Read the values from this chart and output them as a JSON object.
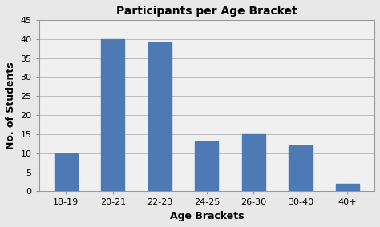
{
  "categories": [
    "18-19",
    "20-21",
    "22-23",
    "24-25",
    "26-30",
    "30-40",
    "40+"
  ],
  "values": [
    10,
    40,
    39,
    13,
    15,
    12,
    2
  ],
  "bar_color": "#4d7ab5",
  "title": "Participants per Age Bracket",
  "xlabel": "Age Brackets",
  "ylabel": "No. of Students",
  "ylim": [
    0,
    45
  ],
  "yticks": [
    0,
    5,
    10,
    15,
    20,
    25,
    30,
    35,
    40,
    45
  ],
  "title_fontsize": 10,
  "label_fontsize": 9,
  "tick_fontsize": 8,
  "background_color": "#e8e8e8",
  "plot_bg_color": "#f0f0f0",
  "grid_color": "#bbbbbb",
  "bar_width": 0.5
}
